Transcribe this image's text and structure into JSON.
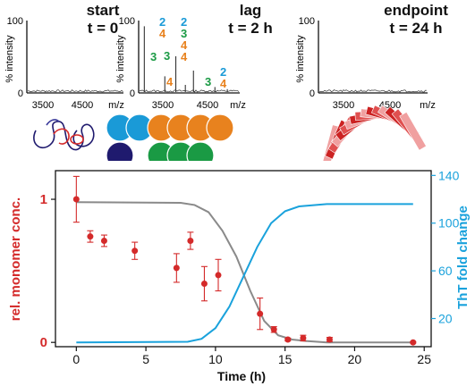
{
  "panels": [
    {
      "title": "start",
      "time": "t = 0",
      "ylabel": "% intensity",
      "y_max_label": "100",
      "y_zero_label": "0",
      "x_ticks": [
        "3500",
        "4500"
      ],
      "x_unit": "m/z",
      "peaks": []
    },
    {
      "title": "lag",
      "time": "t = 2 h",
      "ylabel": "% intensity",
      "y_max_label": "100",
      "y_zero_label": "0",
      "x_ticks": [
        "3500",
        "4500"
      ],
      "x_unit": "m/z",
      "peaks": [
        {
          "mz": 2900,
          "height": 0.92
        },
        {
          "mz": 3330,
          "height": 0.22
        },
        {
          "mz": 3560,
          "height": 0.5
        },
        {
          "mz": 3760,
          "height": 0.1
        },
        {
          "mz": 3930,
          "height": 0.3
        },
        {
          "mz": 4380,
          "height": 0.07
        },
        {
          "mz": 4640,
          "height": 0.04
        }
      ],
      "peak_labels": [
        {
          "text": "2",
          "color": "blue"
        },
        {
          "text": "4",
          "color": "orange"
        },
        {
          "text": "3",
          "color": "green"
        },
        {
          "text": "3",
          "color": "green"
        },
        {
          "text": "2",
          "color": "blue"
        },
        {
          "text": "3",
          "color": "green"
        },
        {
          "text": "4",
          "color": "orange"
        },
        {
          "text": "4",
          "color": "orange"
        },
        {
          "text": "4",
          "color": "orange"
        },
        {
          "text": "3",
          "color": "green"
        },
        {
          "text": "2",
          "color": "blue"
        },
        {
          "text": "4",
          "color": "orange"
        }
      ]
    },
    {
      "title": "endpoint",
      "time": "t = 24 h",
      "ylabel": "% intensity",
      "y_max_label": "100",
      "y_zero_label": "0",
      "x_ticks": [
        "3500",
        "4500"
      ],
      "x_unit": "m/z",
      "peaks": []
    }
  ],
  "colors": {
    "blue": "#1a9ad7",
    "orange": "#e8821e",
    "green": "#1a9a44",
    "navy": "#1f1a6e",
    "red": "#d42a2a",
    "gray": "#8a8a8a",
    "cyan": "#1aa2dc",
    "fibril_light": "#f0a0a0",
    "fibril_dark": "#cc2222"
  },
  "chart_data": {
    "type": "scatter",
    "xlabel": "Time (h)",
    "ylabel_left": "rel. monomer conc.",
    "ylabel_right": "ThT fold change",
    "xlim": [
      -1.5,
      25.5
    ],
    "ylim_left": [
      -0.03,
      1.2
    ],
    "ylim_right": [
      -3.6,
      144
    ],
    "x_ticks": [
      0,
      5,
      10,
      15,
      20,
      25
    ],
    "y_left_ticks": [
      0,
      1
    ],
    "y_right_ticks": [
      20,
      60,
      100,
      140
    ],
    "series": [
      {
        "kind": "points",
        "axis": "left",
        "x": [
          0,
          1,
          2,
          4.2,
          7.2,
          8.2,
          9.2,
          10.2,
          13.2,
          14.2,
          15.2,
          16.3,
          18.2,
          24.2
        ],
        "y": [
          1.0,
          0.74,
          0.71,
          0.64,
          0.52,
          0.71,
          0.41,
          0.47,
          0.2,
          0.09,
          0.02,
          0.03,
          0.02,
          0.0
        ],
        "err": [
          0.16,
          0.04,
          0.04,
          0.06,
          0.1,
          0.06,
          0.12,
          0.11,
          0.11,
          0.02,
          0.01,
          0.02,
          0.015,
          0.005
        ]
      },
      {
        "kind": "line",
        "axis": "left",
        "x": [
          0,
          7.5,
          8.5,
          9.5,
          10.5,
          11.5,
          12.5,
          13.5,
          14.5,
          15.5,
          16.5,
          18,
          24.2
        ],
        "y": [
          0.98,
          0.975,
          0.96,
          0.91,
          0.78,
          0.6,
          0.36,
          0.15,
          0.05,
          0.02,
          0.01,
          0.0,
          0.0
        ]
      },
      {
        "kind": "line",
        "axis": "right",
        "x": [
          0,
          8,
          9,
          10,
          11,
          12,
          13,
          14,
          15,
          16,
          18,
          20,
          24.2
        ],
        "y": [
          0,
          0.5,
          3,
          12,
          30,
          55,
          80,
          100,
          110,
          114,
          116,
          116,
          116
        ]
      }
    ]
  }
}
